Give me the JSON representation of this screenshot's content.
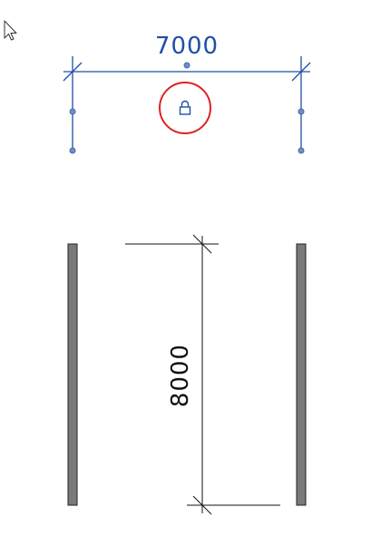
{
  "view": {
    "background": "#ffffff"
  },
  "cursor": {
    "icon": "arrow-cursor-icon"
  },
  "dimensions": {
    "horizontal": {
      "value": "7000",
      "color": "#1f4fa8",
      "state": "selected",
      "lock_icon": "lock-icon",
      "lock_highlight_color": "#e02020"
    },
    "vertical": {
      "value": "8000",
      "color": "#111111",
      "state": "unselected"
    }
  },
  "walls": {
    "fill": "#7a7a7a",
    "stroke": "#222222",
    "count": 2
  }
}
